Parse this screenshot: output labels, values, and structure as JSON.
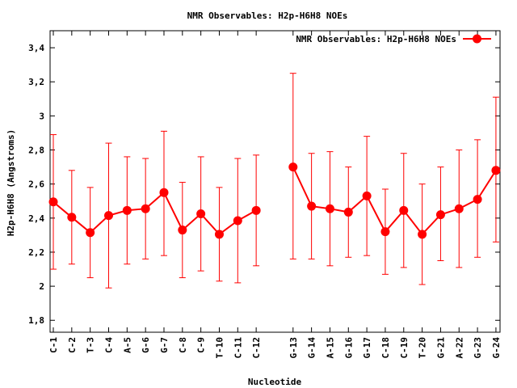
{
  "chart_data": {
    "type": "line",
    "title": "NMR Observables: H2p-H6H8 NOEs",
    "xlabel": "Nucleotide",
    "ylabel": "H2p-H6H8 (Angstroms)",
    "ylim": [
      1.73,
      3.5
    ],
    "yticks": [
      "1,8",
      "2",
      "2,2",
      "2,4",
      "2,6",
      "2,8",
      "3",
      "3,2",
      "3,4"
    ],
    "ytick_values": [
      1.8,
      2.0,
      2.2,
      2.4,
      2.6,
      2.8,
      3.0,
      3.2,
      3.4
    ],
    "grid": false,
    "legend_position": "top-right",
    "series": [
      {
        "name": "NMR Observables: H2p-H6H8 NOEs",
        "color": "#ff0000",
        "points": [
          {
            "label": "C-1",
            "slot": 0,
            "y": 2.495,
            "lo": 2.1,
            "hi": 2.89
          },
          {
            "label": "C-2",
            "slot": 1,
            "y": 2.405,
            "lo": 2.13,
            "hi": 2.68
          },
          {
            "label": "T-3",
            "slot": 2,
            "y": 2.315,
            "lo": 2.05,
            "hi": 2.58
          },
          {
            "label": "C-4",
            "slot": 3,
            "y": 2.415,
            "lo": 1.99,
            "hi": 2.84
          },
          {
            "label": "A-5",
            "slot": 4,
            "y": 2.445,
            "lo": 2.13,
            "hi": 2.76
          },
          {
            "label": "G-6",
            "slot": 5,
            "y": 2.455,
            "lo": 2.16,
            "hi": 2.75
          },
          {
            "label": "G-7",
            "slot": 6,
            "y": 2.55,
            "lo": 2.18,
            "hi": 2.91
          },
          {
            "label": "C-8",
            "slot": 7,
            "y": 2.33,
            "lo": 2.05,
            "hi": 2.61
          },
          {
            "label": "C-9",
            "slot": 8,
            "y": 2.425,
            "lo": 2.09,
            "hi": 2.76
          },
          {
            "label": "T-10",
            "slot": 9,
            "y": 2.305,
            "lo": 2.03,
            "hi": 2.58
          },
          {
            "label": "C-11",
            "slot": 10,
            "y": 2.385,
            "lo": 2.02,
            "hi": 2.75
          },
          {
            "label": "C-12",
            "slot": 11,
            "y": 2.445,
            "lo": 2.12,
            "hi": 2.77
          },
          {
            "label": "G-13",
            "slot": 13,
            "y": 2.7,
            "lo": 2.16,
            "hi": 3.25
          },
          {
            "label": "G-14",
            "slot": 14,
            "y": 2.47,
            "lo": 2.16,
            "hi": 2.78
          },
          {
            "label": "A-15",
            "slot": 15,
            "y": 2.455,
            "lo": 2.12,
            "hi": 2.79
          },
          {
            "label": "G-16",
            "slot": 16,
            "y": 2.435,
            "lo": 2.17,
            "hi": 2.7
          },
          {
            "label": "G-17",
            "slot": 17,
            "y": 2.53,
            "lo": 2.18,
            "hi": 2.88
          },
          {
            "label": "C-18",
            "slot": 18,
            "y": 2.32,
            "lo": 2.07,
            "hi": 2.57
          },
          {
            "label": "C-19",
            "slot": 19,
            "y": 2.445,
            "lo": 2.11,
            "hi": 2.78
          },
          {
            "label": "T-20",
            "slot": 20,
            "y": 2.305,
            "lo": 2.01,
            "hi": 2.6
          },
          {
            "label": "G-21",
            "slot": 21,
            "y": 2.42,
            "lo": 2.15,
            "hi": 2.7
          },
          {
            "label": "A-22",
            "slot": 22,
            "y": 2.455,
            "lo": 2.11,
            "hi": 2.8
          },
          {
            "label": "G-23",
            "slot": 23,
            "y": 2.51,
            "lo": 2.17,
            "hi": 2.86
          },
          {
            "label": "G-24",
            "slot": 24,
            "y": 2.68,
            "lo": 2.26,
            "hi": 3.11
          }
        ]
      }
    ]
  }
}
